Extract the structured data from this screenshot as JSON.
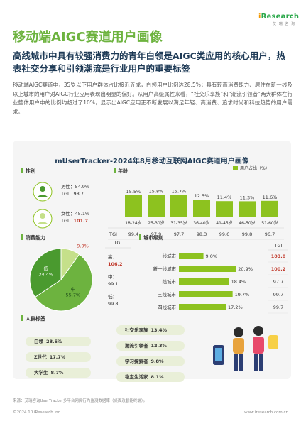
{
  "logo": {
    "brand_i": "i",
    "brand_rest": "Research",
    "sub": "艾 瑞 咨 询"
  },
  "title": "移动端AIGC赛道用户画像",
  "subtitle": "高线城市中具有较强消费力的青年白领是AIGC类应用的核心用户，热表社交分享和引领潮流是行业用户的重要标签",
  "body_text": "移动端AIGC赛道中，35岁以下用户群体占比接近五成，白领用户比例达28.5%；具有较高消费能力、居住在新一线及以上城市的用户对AIGC行业应用表现出明显的偏好。从用户高级属性来看，“社交乐享族”和“潮流引领者”两大群体在行业整体用户中的比例均超过了10%，显示出AIGC应用正不断发展以满足年轻、高消费、追求时尚和科技趋势的用户需求。",
  "chart_title": "mUserTracker-2024年8月移动互联网AIGC赛道用户画像",
  "colors": {
    "green": "#8dc21f",
    "dark_green": "#4a9a2f",
    "light_green": "#c5e08a",
    "red": "#c0392b",
    "title_green": "#6db33f"
  },
  "sections": {
    "gender": "性别",
    "age": "年龄",
    "consumption": "消费能力",
    "city": "城市级别",
    "tags": "人群标签"
  },
  "chart_data": [
    {
      "type": "table",
      "name": "gender",
      "rows": [
        {
          "label": "男性：",
          "pct": "54.9%",
          "tgi_label": "TGI：",
          "tgi": "98.7"
        },
        {
          "label": "女性：",
          "pct": "45.1%",
          "tgi_label": "TGI：",
          "tgi": "101.7"
        }
      ]
    },
    {
      "type": "bar",
      "name": "age",
      "legend": "用户占比（%）",
      "categories": [
        "18-24岁",
        "25-30岁",
        "31-35岁",
        "36-40岁",
        "41-45岁",
        "46-50岁",
        "51-60岁"
      ],
      "values": [
        15.5,
        15.8,
        15.7,
        12.5,
        11.4,
        11.3,
        11.6
      ],
      "labels": [
        "15.5%",
        "15.8%",
        "15.7%",
        "12.5%",
        "11.4%",
        "11.3%",
        "11.6%"
      ],
      "tgi_label": "TGI",
      "tgi": [
        "99.4",
        "97.9",
        "97.7",
        "98.3",
        "99.6",
        "99.8",
        "96.7"
      ],
      "ylim": [
        0,
        20
      ]
    },
    {
      "type": "pie",
      "name": "consumption",
      "slices": [
        {
          "label": "高",
          "value": 9.9,
          "pct": "9.9%",
          "color": "#c5e08a"
        },
        {
          "label": "中",
          "value": 55.7,
          "pct": "55.7%",
          "color": "#6db33f"
        },
        {
          "label": "低",
          "value": 34.4,
          "pct": "34.4%",
          "color": "#4a9a2f"
        }
      ],
      "tgi_label": "TGI",
      "tgi": [
        {
          "label": "高：",
          "value": "106.2"
        },
        {
          "label": "中：",
          "value": "99.1"
        },
        {
          "label": "低：",
          "value": "99.8"
        }
      ]
    },
    {
      "type": "bar",
      "name": "city",
      "orientation": "horizontal",
      "categories": [
        "一线城市",
        "新一线城市",
        "二线城市",
        "三线城市",
        "四线城市"
      ],
      "values": [
        9.0,
        20.9,
        18.4,
        19.7,
        17.2
      ],
      "labels": [
        "9.0%",
        "20.9%",
        "18.4%",
        "19.7%",
        "17.2%"
      ],
      "tgi_label": "TGI",
      "tgi": [
        "103.0",
        "100.2",
        "97.7",
        "99.7",
        "99.7"
      ],
      "xlim": [
        0,
        25
      ]
    },
    {
      "type": "table",
      "name": "tags",
      "items": [
        {
          "label": "白领",
          "pct": "28.5%"
        },
        {
          "label": "Z世代",
          "pct": "17.7%"
        },
        {
          "label": "大学生",
          "pct": "8.7%"
        },
        {
          "label": "社交乐享族",
          "pct": "13.4%"
        },
        {
          "label": "潮流引领者",
          "pct": "12.3%"
        },
        {
          "label": "学习探索者",
          "pct": "9.8%"
        },
        {
          "label": "稳定生活家",
          "pct": "8.1%"
        }
      ]
    }
  ],
  "footer": {
    "source": "来源：艾瑞咨询UserTracker多平台网民行为监测数据库（桌面及智能终端）。",
    "copyright": "©2024.10 iResearch Inc.",
    "site": "www.iresearch.com.cn"
  }
}
